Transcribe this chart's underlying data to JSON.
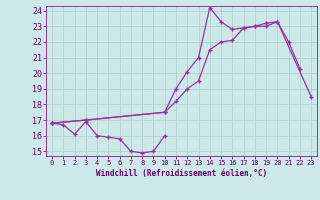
{
  "xlabel": "Windchill (Refroidissement éolien,°C)",
  "x_values": [
    0,
    1,
    2,
    3,
    4,
    5,
    6,
    7,
    8,
    9,
    10,
    11,
    12,
    13,
    14,
    15,
    16,
    17,
    18,
    19,
    20,
    21,
    22,
    23
  ],
  "line1": [
    16.8,
    16.7,
    16.1,
    16.9,
    16.0,
    15.9,
    15.8,
    15.0,
    14.9,
    15.0,
    16.0,
    null,
    null,
    null,
    null,
    null,
    null,
    null,
    null,
    null,
    null,
    null,
    null,
    null
  ],
  "line2": [
    16.8,
    null,
    null,
    17.0,
    null,
    null,
    null,
    null,
    null,
    null,
    17.5,
    19.0,
    20.1,
    21.0,
    24.2,
    23.3,
    22.8,
    22.9,
    23.0,
    23.0,
    23.3,
    22.0,
    20.3,
    null
  ],
  "line3": [
    16.8,
    null,
    null,
    17.0,
    null,
    null,
    null,
    null,
    null,
    null,
    17.5,
    18.2,
    19.0,
    19.5,
    21.5,
    22.0,
    22.1,
    22.9,
    23.0,
    23.2,
    23.3,
    null,
    null,
    18.5
  ],
  "ylim": [
    15,
    24
  ],
  "xlim": [
    0,
    23
  ],
  "yticks": [
    15,
    16,
    17,
    18,
    19,
    20,
    21,
    22,
    23,
    24
  ],
  "xticks": [
    0,
    1,
    2,
    3,
    4,
    5,
    6,
    7,
    8,
    9,
    10,
    11,
    12,
    13,
    14,
    15,
    16,
    17,
    18,
    19,
    20,
    21,
    22,
    23
  ],
  "line_color": "#993399",
  "bg_color": "#cce8e8",
  "grid_color": "#aacccc",
  "tick_color": "#660066",
  "spine_color": "#993399",
  "xlabel_fontsize": 5.5,
  "ytick_fontsize": 6,
  "xtick_fontsize": 5
}
